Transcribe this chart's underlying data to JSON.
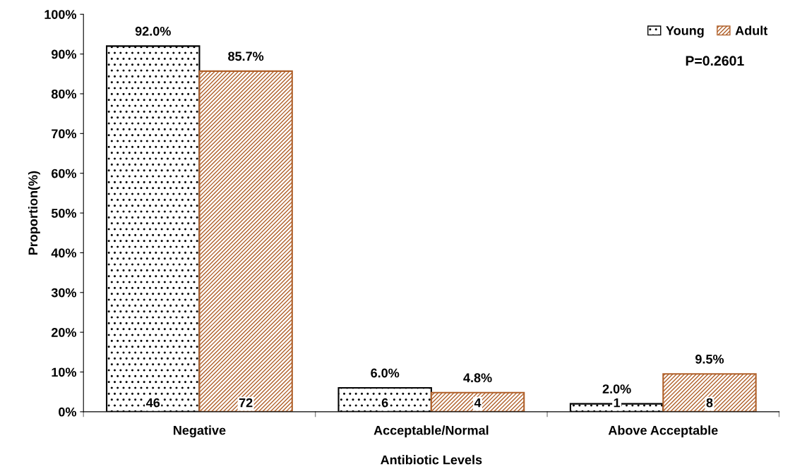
{
  "chart_data": {
    "type": "bar",
    "xlabel": "Antibiotic Levels",
    "ylabel": "Proportion(%)",
    "categories": [
      "Negative",
      "Acceptable/Normal",
      "Above Acceptable"
    ],
    "series": [
      {
        "name": "Young",
        "color": "#000000",
        "values": [
          92.0,
          6.0,
          2.0
        ],
        "value_labels": [
          "92.0%",
          "6.0%",
          "2.0%"
        ]
      },
      {
        "name": "Adult",
        "color": "#b0602a",
        "values": [
          85.7,
          4.8,
          9.5
        ],
        "value_labels": [
          "85.7%",
          "4.8%",
          "9.5%"
        ]
      }
    ],
    "ylim": [
      0,
      100
    ],
    "yticks": [
      {
        "value": 0,
        "label": "0%"
      },
      {
        "value": 10,
        "label": "10%"
      },
      {
        "value": 20,
        "label": "20%"
      },
      {
        "value": 30,
        "label": "30%"
      },
      {
        "value": 40,
        "label": "40%"
      },
      {
        "value": 50,
        "label": "50%"
      },
      {
        "value": 60,
        "label": "60%"
      },
      {
        "value": 70,
        "label": "70%"
      },
      {
        "value": 80,
        "label": "80%"
      },
      {
        "value": 90,
        "label": "90%"
      },
      {
        "value": 100,
        "label": "100%"
      }
    ],
    "annotations": [
      "46",
      "6",
      "1",
      "72",
      "4",
      "8",
      "P=0.2601"
    ],
    "legend": "top right",
    "grid": false
  }
}
